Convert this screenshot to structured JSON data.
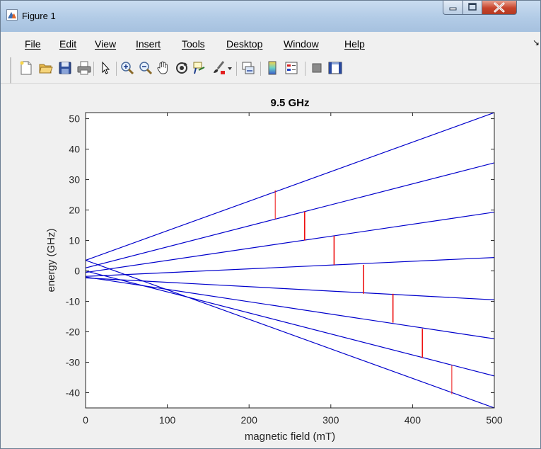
{
  "window": {
    "title": "Figure 1",
    "icons": {
      "app": "matlab-figure-icon",
      "minimize": "minimize-icon",
      "maximize": "maximize-icon",
      "close": "close-icon"
    }
  },
  "menubar": {
    "items": [
      {
        "label": "File"
      },
      {
        "label": "Edit"
      },
      {
        "label": "View"
      },
      {
        "label": "Insert"
      },
      {
        "label": "Tools"
      },
      {
        "label": "Desktop"
      },
      {
        "label": "Window"
      },
      {
        "label": "Help"
      }
    ],
    "overflow_icon": "toolbar-overflow-arrow-icon"
  },
  "toolbar": {
    "buttons": [
      {
        "icon": "new-figure-icon"
      },
      {
        "icon": "open-file-icon"
      },
      {
        "icon": "save-icon"
      },
      {
        "icon": "print-icon"
      },
      {
        "icon": "edit-plot-arrow-icon"
      },
      {
        "icon": "zoom-in-icon"
      },
      {
        "icon": "zoom-out-icon"
      },
      {
        "icon": "pan-hand-icon"
      },
      {
        "icon": "rotate-3d-icon"
      },
      {
        "icon": "data-cursor-icon"
      },
      {
        "icon": "brush-icon"
      },
      {
        "icon": "brush-dropdown-icon"
      },
      {
        "icon": "link-plot-icon"
      },
      {
        "icon": "colorbar-icon"
      },
      {
        "icon": "legend-icon"
      },
      {
        "icon": "hide-plot-tools-icon"
      },
      {
        "icon": "show-plot-tools-icon"
      }
    ]
  },
  "chart_data": {
    "type": "line",
    "title": "9.5 GHz",
    "xlabel": "magnetic field (mT)",
    "ylabel": "energy (GHz)",
    "xlim": [
      0,
      500
    ],
    "ylim": [
      -45,
      52
    ],
    "xticks": [
      0,
      100,
      200,
      300,
      400,
      500
    ],
    "yticks": [
      -40,
      -30,
      -20,
      -10,
      0,
      10,
      20,
      30,
      40,
      50
    ],
    "grid": false,
    "legend": "none",
    "series_color": "#0000cc",
    "transition_color": "#ee1111",
    "series": [
      {
        "x": [
          0,
          500
        ],
        "y": [
          3.5,
          52
        ]
      },
      {
        "x": [
          0,
          500
        ],
        "y": [
          1,
          35.5
        ]
      },
      {
        "x": [
          0,
          500
        ],
        "y": [
          -0.5,
          19.3
        ]
      },
      {
        "x": [
          0,
          500
        ],
        "y": [
          -1.8,
          4.4
        ]
      },
      {
        "x": [
          0,
          500
        ],
        "y": [
          -2.3,
          -9.5
        ]
      },
      {
        "x": [
          0,
          500
        ],
        "y": [
          -2,
          -22.3
        ]
      },
      {
        "x": [
          0,
          500
        ],
        "y": [
          0,
          -34.5
        ]
      },
      {
        "x": [
          0,
          500
        ],
        "y": [
          3.5,
          -45
        ]
      }
    ],
    "transitions": [
      {
        "x": 232,
        "y1": 17,
        "y2": 26.5
      },
      {
        "x": 268,
        "y1": 10,
        "y2": 19.5
      },
      {
        "x": 304,
        "y1": 2,
        "y2": 11.5
      },
      {
        "x": 340,
        "y1": -7.5,
        "y2": 2
      },
      {
        "x": 376,
        "y1": -17,
        "y2": -7.5
      },
      {
        "x": 412,
        "y1": -28.5,
        "y2": -19
      },
      {
        "x": 448,
        "y1": -40.5,
        "y2": -31
      }
    ]
  }
}
